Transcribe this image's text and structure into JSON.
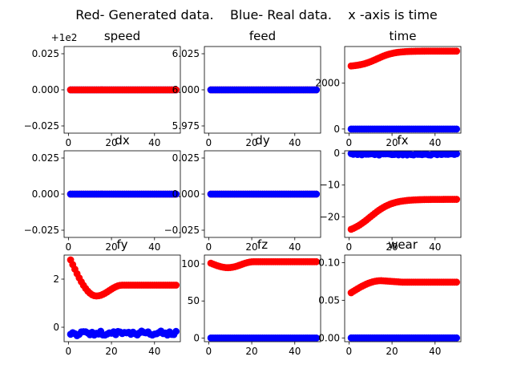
{
  "figure": {
    "suptitle": "Red- Generated data.    Blue- Real data.    x -axis is time"
  },
  "legend_meaning": {
    "red": "Generated data.",
    "blue": "Real data."
  },
  "colors": {
    "generated": "#ff0000",
    "real": "#0000ff"
  },
  "chart_data": [
    {
      "type": "scatter",
      "title": "speed",
      "offset_label": "+1e2",
      "xlim": [
        -2,
        52
      ],
      "ylim": [
        -0.03,
        0.03
      ],
      "xticks": [
        {
          "v": 0,
          "l": "0"
        },
        {
          "v": 20,
          "l": "20"
        },
        {
          "v": 40,
          "l": "40"
        }
      ],
      "yticks": [
        {
          "v": -0.025,
          "l": "−0.025"
        },
        {
          "v": 0,
          "l": "0.000"
        },
        {
          "v": 0.025,
          "l": "0.025"
        }
      ],
      "series": [
        {
          "color": "real",
          "gen": "const",
          "value": 0,
          "n": 50
        },
        {
          "color": "generated",
          "gen": "const",
          "value": 0,
          "n": 50
        }
      ]
    },
    {
      "type": "scatter",
      "title": "feed",
      "xlim": [
        -2,
        52
      ],
      "ylim": [
        5.97,
        6.03
      ],
      "xticks": [
        {
          "v": 0,
          "l": "0"
        },
        {
          "v": 20,
          "l": "20"
        },
        {
          "v": 40,
          "l": "40"
        }
      ],
      "yticks": [
        {
          "v": 5.975,
          "l": "5.975"
        },
        {
          "v": 6.0,
          "l": "6.000"
        },
        {
          "v": 6.025,
          "l": "6.025"
        }
      ],
      "series": [
        {
          "color": "generated",
          "gen": "const",
          "value": 6.0,
          "n": 50
        },
        {
          "color": "real",
          "gen": "const",
          "value": 6.0,
          "n": 50
        }
      ]
    },
    {
      "type": "scatter",
      "title": "time",
      "xlim": [
        -2,
        52
      ],
      "ylim": [
        -180,
        3600
      ],
      "xticks": [
        {
          "v": 0,
          "l": "0"
        },
        {
          "v": 20,
          "l": "20"
        },
        {
          "v": 40,
          "l": "40"
        }
      ],
      "yticks": [
        {
          "v": 0,
          "l": "0"
        },
        {
          "v": 2000,
          "l": "2000"
        }
      ],
      "series": [
        {
          "color": "generated",
          "gen": "sigmoid",
          "a": 2720,
          "b": 3400,
          "c": 13,
          "w": 4,
          "n": 50
        },
        {
          "color": "real",
          "gen": "const",
          "value": 0,
          "n": 50
        }
      ]
    },
    {
      "type": "scatter",
      "title": "dx",
      "xlim": [
        -2,
        52
      ],
      "ylim": [
        -0.03,
        0.03
      ],
      "xticks": [
        {
          "v": 0,
          "l": "0"
        },
        {
          "v": 20,
          "l": "20"
        },
        {
          "v": 40,
          "l": "40"
        }
      ],
      "yticks": [
        {
          "v": -0.025,
          "l": "−0.025"
        },
        {
          "v": 0,
          "l": "0.000"
        },
        {
          "v": 0.025,
          "l": "0.025"
        }
      ],
      "series": [
        {
          "color": "generated",
          "gen": "const",
          "value": 0,
          "n": 50
        },
        {
          "color": "real",
          "gen": "const",
          "value": 0,
          "n": 50
        }
      ]
    },
    {
      "type": "scatter",
      "title": "dy",
      "xlim": [
        -2,
        52
      ],
      "ylim": [
        -0.03,
        0.03
      ],
      "xticks": [
        {
          "v": 0,
          "l": "0"
        },
        {
          "v": 20,
          "l": "20"
        },
        {
          "v": 40,
          "l": "40"
        }
      ],
      "yticks": [
        {
          "v": -0.025,
          "l": "−0.025"
        },
        {
          "v": 0,
          "l": "0.000"
        },
        {
          "v": 0.025,
          "l": "0.025"
        }
      ],
      "series": [
        {
          "color": "generated",
          "gen": "const",
          "value": 0,
          "n": 50
        },
        {
          "color": "real",
          "gen": "const",
          "value": 0,
          "n": 50
        }
      ]
    },
    {
      "type": "scatter",
      "title": "fx",
      "xlim": [
        -2,
        52
      ],
      "ylim": [
        -26.5,
        0.8
      ],
      "xticks": [
        {
          "v": 0,
          "l": "0"
        },
        {
          "v": 20,
          "l": "20"
        },
        {
          "v": 40,
          "l": "40"
        }
      ],
      "yticks": [
        {
          "v": -20,
          "l": "−20"
        },
        {
          "v": -10,
          "l": "−10"
        },
        {
          "v": 0,
          "l": "0"
        }
      ],
      "series": [
        {
          "color": "generated",
          "gen": "sigmoid",
          "a": -25.5,
          "b": -14.5,
          "c": 10,
          "w": 5,
          "n": 50
        },
        {
          "color": "real",
          "gen": "noise",
          "base": -0.3,
          "amp": 0.25,
          "n": 50
        }
      ]
    },
    {
      "type": "scatter",
      "title": "fy",
      "xlim": [
        -2,
        52
      ],
      "ylim": [
        -0.6,
        3.0
      ],
      "xticks": [
        {
          "v": 0,
          "l": "0"
        },
        {
          "v": 20,
          "l": "20"
        },
        {
          "v": 40,
          "l": "40"
        }
      ],
      "yticks": [
        {
          "v": 0,
          "l": "0"
        },
        {
          "v": 2,
          "l": "2"
        }
      ],
      "series": [
        {
          "color": "generated",
          "gen": "dip",
          "start": 2.8,
          "min": 1.3,
          "min_at": 13,
          "end": 1.75,
          "n": 50
        },
        {
          "color": "real",
          "gen": "noise",
          "base": -0.25,
          "amp": 0.1,
          "n": 50
        }
      ]
    },
    {
      "type": "scatter",
      "title": "fz",
      "xlim": [
        -2,
        52
      ],
      "ylim": [
        -5,
        112
      ],
      "xticks": [
        {
          "v": 0,
          "l": "0"
        },
        {
          "v": 20,
          "l": "20"
        },
        {
          "v": 40,
          "l": "40"
        }
      ],
      "yticks": [
        {
          "v": 0,
          "l": "0"
        },
        {
          "v": 50,
          "l": "50"
        },
        {
          "v": 100,
          "l": "100"
        }
      ],
      "series": [
        {
          "color": "generated",
          "gen": "dip",
          "start": 101,
          "min": 95,
          "min_at": 9,
          "end": 103,
          "n": 50
        },
        {
          "color": "real",
          "gen": "const",
          "value": 0,
          "n": 50
        }
      ]
    },
    {
      "type": "scatter",
      "title": "wear",
      "xlim": [
        -2,
        52
      ],
      "ylim": [
        -0.005,
        0.11
      ],
      "xticks": [
        {
          "v": 0,
          "l": "0"
        },
        {
          "v": 20,
          "l": "20"
        },
        {
          "v": 40,
          "l": "40"
        }
      ],
      "yticks": [
        {
          "v": 0,
          "l": "0.00"
        },
        {
          "v": 0.05,
          "l": "0.05"
        },
        {
          "v": 0.1,
          "l": "0.10"
        }
      ],
      "series": [
        {
          "color": "generated",
          "gen": "rise_peak",
          "start": 0.06,
          "peak": 0.076,
          "peak_at": 15,
          "end": 0.074,
          "n": 50
        },
        {
          "color": "real",
          "gen": "const",
          "value": 0,
          "n": 50
        }
      ]
    }
  ]
}
